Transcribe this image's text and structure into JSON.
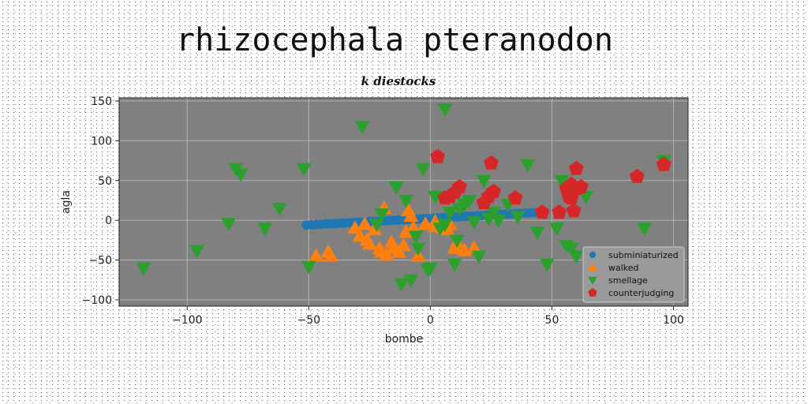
{
  "chart_data": {
    "type": "scatter",
    "title": "rhizocephala pteranodon",
    "subtitle": "k diestocks",
    "xlabel": "bombe",
    "ylabel": "agla",
    "xlim": [
      -128,
      106
    ],
    "ylim": [
      -108,
      154
    ],
    "xticks": [
      -100,
      -50,
      0,
      50,
      100
    ],
    "yticks": [
      -100,
      -50,
      0,
      50,
      100,
      150
    ],
    "grid": true,
    "legend_position": "bottom-right",
    "plot_background": "#808080",
    "series": [
      {
        "name": "subminiaturized",
        "marker": "circle",
        "color": "#1f77b4",
        "x": [
          -51,
          -49,
          -47,
          -45,
          -43,
          -41,
          -39,
          -37,
          -35,
          -33,
          -31,
          -29,
          -27,
          -25,
          -23,
          -21,
          -19,
          -17,
          -15,
          -13,
          -11,
          -9,
          -7,
          -5,
          -3,
          -1,
          1,
          3,
          5,
          7,
          9,
          11,
          13,
          15,
          17,
          19,
          21,
          23,
          25,
          27,
          29,
          31,
          33,
          35,
          37,
          39,
          41,
          43
        ],
        "y": [
          -6,
          -5.6,
          -5.3,
          -5,
          -4.6,
          -4.3,
          -4,
          -3.6,
          -3.3,
          -3,
          -2.6,
          -2.3,
          -2,
          -1.6,
          -1.3,
          -1,
          -0.6,
          -0.3,
          0,
          0.3,
          0.6,
          1,
          1.3,
          1.6,
          2,
          2.3,
          2.6,
          3,
          3.3,
          3.6,
          4,
          4.3,
          4.6,
          5,
          5.3,
          5.6,
          6,
          6.3,
          6.6,
          7,
          7.3,
          7.6,
          8,
          8.3,
          8.6,
          9,
          9.3,
          9.6
        ]
      },
      {
        "name": "walked",
        "marker": "triangle-up",
        "color": "#ff7f0e",
        "x": [
          -47,
          -42,
          -41,
          -31,
          -29,
          -27,
          -26,
          -25,
          -23,
          -21,
          -20,
          -19,
          -18,
          -16,
          -15,
          -13,
          -11,
          -10,
          -8,
          -7,
          -5,
          -2,
          2,
          5,
          7,
          8,
          10,
          11,
          14,
          18,
          2,
          -9
        ],
        "y": [
          -45,
          -40,
          -45,
          -10,
          -20,
          -5,
          -25,
          -30,
          -12,
          -36,
          -40,
          15,
          -44,
          -28,
          -35,
          -40,
          -32,
          -15,
          5,
          -10,
          -45,
          -5,
          -8,
          -10,
          -12,
          -5,
          -35,
          -28,
          -38,
          -35,
          -2,
          12
        ]
      },
      {
        "name": "smellage",
        "marker": "triangle-down",
        "color": "#2ca02c",
        "x": [
          -118,
          -96,
          -83,
          -80,
          -78,
          -68,
          -62,
          -52,
          -50,
          -28,
          -22,
          -14,
          -12,
          -10,
          -8,
          -6,
          -5,
          -3,
          -1,
          2,
          4,
          6,
          8,
          10,
          11,
          12,
          14,
          16,
          18,
          20,
          22,
          24,
          26,
          28,
          32,
          36,
          40,
          44,
          48,
          52,
          54,
          56,
          58,
          60,
          64,
          88,
          96,
          -20,
          6,
          0
        ],
        "y": [
          -60,
          -38,
          -4,
          65,
          58,
          -10,
          15,
          65,
          -58,
          118,
          -5,
          42,
          -80,
          25,
          -75,
          -20,
          -35,
          65,
          -62,
          30,
          -10,
          140,
          10,
          -55,
          -25,
          15,
          20,
          25,
          -2,
          -45,
          50,
          2,
          10,
          0,
          20,
          5,
          70,
          -15,
          -55,
          -10,
          50,
          -32,
          -35,
          -45,
          30,
          -10,
          75,
          8,
          -5,
          -60
        ]
      },
      {
        "name": "counterjudging",
        "marker": "pentagon",
        "color": "#d62728",
        "x": [
          3,
          6,
          8,
          10,
          12,
          22,
          24,
          25,
          26,
          35,
          46,
          53,
          56,
          57,
          58,
          58,
          59,
          60,
          60,
          62,
          85,
          96
        ],
        "y": [
          80,
          28,
          30,
          35,
          42,
          22,
          30,
          72,
          36,
          28,
          10,
          10,
          40,
          30,
          45,
          28,
          12,
          65,
          40,
          42,
          55,
          70
        ]
      }
    ]
  }
}
